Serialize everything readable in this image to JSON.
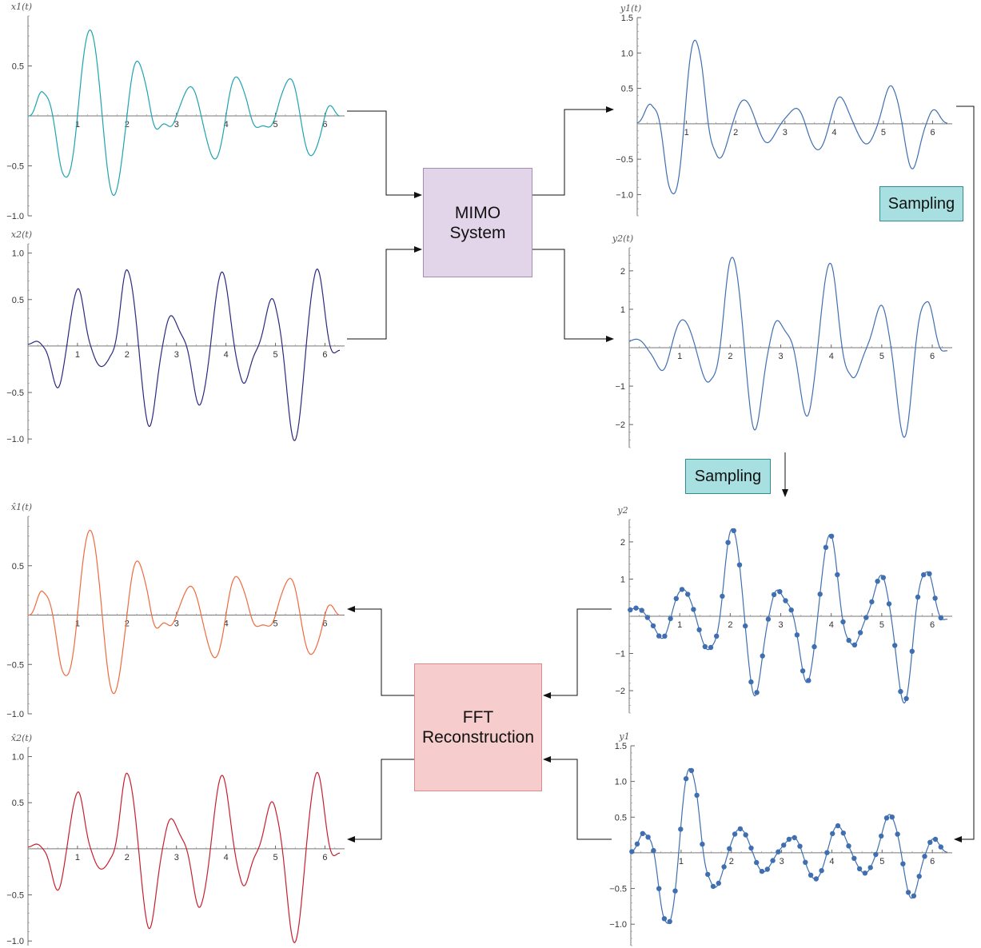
{
  "blocks": {
    "mimo": [
      "MIMO",
      "System"
    ],
    "fft": [
      "FFT",
      "Reconstruction"
    ],
    "sampling_1": "Sampling",
    "sampling_2": "Sampling"
  },
  "colors": {
    "x1": "#1ea3b0",
    "x2": "#2b2880",
    "y": "#3f6fb0",
    "xhat1": "#ef6a3e",
    "xhat2": "#c81e2e",
    "mimo_fill": "#e2d5ea",
    "fft_fill": "#f6cccc",
    "sampling_fill": "#a8dfe0"
  },
  "chart_data": [
    {
      "id": "x1",
      "type": "line",
      "ylabel": "x1(t)",
      "xlim": [
        0,
        6.3
      ],
      "ylim": [
        -1.0,
        1.0
      ],
      "xticks": [
        "1",
        "2",
        "3",
        "4",
        "5",
        "6"
      ],
      "yticks": [
        "0.5",
        "−0.5",
        "−1.0"
      ],
      "ytick_values": [
        0.5,
        -0.5,
        -1.0
      ],
      "signal": {
        "freq": 3.0,
        "phase": 0,
        "env": [
          [
            0,
            0
          ],
          [
            0.3,
            0.25
          ],
          [
            0.7,
            0.6
          ],
          [
            1.1,
            0.85
          ],
          [
            1.5,
            0.88
          ],
          [
            2.0,
            0.7
          ],
          [
            2.4,
            0.45
          ],
          [
            2.75,
            0.08
          ],
          [
            3.0,
            0.22
          ],
          [
            3.5,
            0.35
          ],
          [
            4.0,
            0.5
          ],
          [
            4.4,
            0.32
          ],
          [
            4.75,
            0.1
          ],
          [
            5.1,
            0.3
          ],
          [
            5.5,
            0.48
          ],
          [
            5.9,
            0.35
          ],
          [
            6.3,
            0
          ]
        ]
      }
    },
    {
      "id": "x2",
      "type": "line",
      "ylabel": "x2(t)",
      "xlim": [
        0,
        6.3
      ],
      "ylim": [
        -1.05,
        1.1
      ],
      "xticks": [
        "1",
        "2",
        "3",
        "4",
        "5",
        "6"
      ],
      "yticks": [
        "1.0",
        "0.5",
        "−0.5",
        "−1.0"
      ],
      "ytick_values": [
        1.0,
        0.5,
        -0.5,
        -1.0
      ],
      "signal": {
        "freq": 3.1,
        "phase": 1.2,
        "env": [
          [
            0,
            0.02
          ],
          [
            0.3,
            0.1
          ],
          [
            0.7,
            0.55
          ],
          [
            1.0,
            0.62
          ],
          [
            1.3,
            0.25
          ],
          [
            1.65,
            0.2
          ],
          [
            2.0,
            0.82
          ],
          [
            2.4,
            0.9
          ],
          [
            2.75,
            0.45
          ],
          [
            3.1,
            0.2
          ],
          [
            3.5,
            0.65
          ],
          [
            3.9,
            0.8
          ],
          [
            4.3,
            0.45
          ],
          [
            4.6,
            0.18
          ],
          [
            5.0,
            0.55
          ],
          [
            5.4,
            1.02
          ],
          [
            5.8,
            0.85
          ],
          [
            6.3,
            0.05
          ]
        ]
      }
    },
    {
      "id": "y1",
      "type": "line",
      "ylabel": "y1(t)",
      "xlim": [
        0,
        6.3
      ],
      "ylim": [
        -1.3,
        1.5
      ],
      "xticks": [
        "1",
        "2",
        "3",
        "4",
        "5",
        "6"
      ],
      "yticks": [
        "1.5",
        "1.0",
        "0.5",
        "−0.5",
        "−1.0"
      ],
      "ytick_values": [
        1.5,
        1.0,
        0.5,
        -0.5,
        -1.0
      ],
      "signal": {
        "freq": 3.05,
        "phase": 0.2,
        "env": [
          [
            0,
            0.05
          ],
          [
            0.3,
            0.3
          ],
          [
            0.65,
            0.95
          ],
          [
            1.0,
            1.35
          ],
          [
            1.3,
            1.1
          ],
          [
            1.6,
            0.5
          ],
          [
            2.0,
            0.35
          ],
          [
            2.5,
            0.3
          ],
          [
            3.0,
            0.15
          ],
          [
            3.5,
            0.35
          ],
          [
            4.0,
            0.42
          ],
          [
            4.4,
            0.25
          ],
          [
            4.8,
            0.3
          ],
          [
            5.2,
            0.55
          ],
          [
            5.5,
            0.7
          ],
          [
            5.9,
            0.3
          ],
          [
            6.3,
            0.02
          ]
        ]
      }
    },
    {
      "id": "y2",
      "type": "line",
      "ylabel": "y2(t)",
      "xlim": [
        0,
        6.3
      ],
      "ylim": [
        -2.6,
        2.6
      ],
      "xticks": [
        "1",
        "2",
        "3",
        "4",
        "5",
        "6"
      ],
      "yticks": [
        "2",
        "1",
        "−1",
        "−2"
      ],
      "ytick_values": [
        2,
        1,
        -1,
        -2
      ],
      "signal": {
        "freq": 3.1,
        "phase": 0.9,
        "env": [
          [
            0,
            0.2
          ],
          [
            0.4,
            0.3
          ],
          [
            0.8,
            0.8
          ],
          [
            1.2,
            0.7
          ],
          [
            1.6,
            0.9
          ],
          [
            2.0,
            2.35
          ],
          [
            2.4,
            2.35
          ],
          [
            2.8,
            1.0
          ],
          [
            3.1,
            0.5
          ],
          [
            3.6,
            1.9
          ],
          [
            4.0,
            2.2
          ],
          [
            4.4,
            0.8
          ],
          [
            4.7,
            0.5
          ],
          [
            5.1,
            1.3
          ],
          [
            5.5,
            2.4
          ],
          [
            5.9,
            1.2
          ],
          [
            6.3,
            0.1
          ]
        ]
      }
    },
    {
      "id": "y2s",
      "type": "scatter",
      "ylabel": "y2",
      "xlim": [
        0,
        6.3
      ],
      "ylim": [
        -2.6,
        2.6
      ],
      "xticks": [
        "1",
        "2",
        "3",
        "4",
        "5",
        "6"
      ],
      "yticks": [
        "2",
        "1",
        "−1",
        "−2"
      ],
      "ytick_values": [
        2,
        1,
        -1,
        -2
      ],
      "samples": 55,
      "signal": {
        "freq": 3.1,
        "phase": 0.9,
        "env": [
          [
            0,
            0.2
          ],
          [
            0.4,
            0.3
          ],
          [
            0.8,
            0.8
          ],
          [
            1.2,
            0.7
          ],
          [
            1.6,
            0.9
          ],
          [
            2.0,
            2.35
          ],
          [
            2.4,
            2.35
          ],
          [
            2.8,
            1.0
          ],
          [
            3.1,
            0.5
          ],
          [
            3.6,
            1.9
          ],
          [
            4.0,
            2.2
          ],
          [
            4.4,
            0.8
          ],
          [
            4.7,
            0.5
          ],
          [
            5.1,
            1.3
          ],
          [
            5.5,
            2.4
          ],
          [
            5.9,
            1.2
          ],
          [
            6.3,
            0.1
          ]
        ]
      }
    },
    {
      "id": "y1s",
      "type": "scatter",
      "ylabel": "y1",
      "xlim": [
        0,
        6.3
      ],
      "ylim": [
        -1.3,
        1.5
      ],
      "xticks": [
        "1",
        "2",
        "3",
        "4",
        "5",
        "6"
      ],
      "yticks": [
        "1.5",
        "1.0",
        "0.5",
        "−0.5",
        "−1.0"
      ],
      "ytick_values": [
        1.5,
        1.0,
        0.5,
        -0.5,
        -1.0
      ],
      "samples": 58,
      "signal": {
        "freq": 3.05,
        "phase": 0.2,
        "env": [
          [
            0,
            0.05
          ],
          [
            0.3,
            0.3
          ],
          [
            0.65,
            0.95
          ],
          [
            1.0,
            1.35
          ],
          [
            1.3,
            1.1
          ],
          [
            1.6,
            0.5
          ],
          [
            2.0,
            0.35
          ],
          [
            2.5,
            0.3
          ],
          [
            3.0,
            0.15
          ],
          [
            3.5,
            0.35
          ],
          [
            4.0,
            0.42
          ],
          [
            4.4,
            0.25
          ],
          [
            4.8,
            0.3
          ],
          [
            5.2,
            0.55
          ],
          [
            5.5,
            0.7
          ],
          [
            5.9,
            0.3
          ],
          [
            6.3,
            0.02
          ]
        ]
      }
    },
    {
      "id": "xhat1",
      "type": "line",
      "ylabel": "x̂1(t)",
      "xlim": [
        0,
        6.3
      ],
      "ylim": [
        -1.0,
        1.0
      ],
      "xticks": [
        "1",
        "2",
        "3",
        "4",
        "5",
        "6"
      ],
      "yticks": [
        "0.5",
        "−0.5",
        "−1.0"
      ],
      "ytick_values": [
        0.5,
        -0.5,
        -1.0
      ],
      "signal": {
        "freq": 3.0,
        "phase": 0,
        "env": [
          [
            0,
            0
          ],
          [
            0.3,
            0.25
          ],
          [
            0.7,
            0.6
          ],
          [
            1.1,
            0.85
          ],
          [
            1.5,
            0.88
          ],
          [
            2.0,
            0.7
          ],
          [
            2.4,
            0.45
          ],
          [
            2.75,
            0.08
          ],
          [
            3.0,
            0.22
          ],
          [
            3.5,
            0.35
          ],
          [
            4.0,
            0.5
          ],
          [
            4.4,
            0.32
          ],
          [
            4.75,
            0.1
          ],
          [
            5.1,
            0.3
          ],
          [
            5.5,
            0.48
          ],
          [
            5.9,
            0.35
          ],
          [
            6.3,
            0
          ]
        ]
      }
    },
    {
      "id": "xhat2",
      "type": "line",
      "ylabel": "x̂2(t)",
      "xlim": [
        0,
        6.3
      ],
      "ylim": [
        -1.05,
        1.1
      ],
      "xticks": [
        "1",
        "2",
        "3",
        "4",
        "5",
        "6"
      ],
      "yticks": [
        "1.0",
        "0.5",
        "−0.5",
        "−1.0"
      ],
      "ytick_values": [
        1.0,
        0.5,
        -0.5,
        -1.0
      ],
      "signal": {
        "freq": 3.1,
        "phase": 1.2,
        "env": [
          [
            0,
            0.02
          ],
          [
            0.3,
            0.1
          ],
          [
            0.7,
            0.55
          ],
          [
            1.0,
            0.62
          ],
          [
            1.3,
            0.25
          ],
          [
            1.65,
            0.2
          ],
          [
            2.0,
            0.82
          ],
          [
            2.4,
            0.9
          ],
          [
            2.75,
            0.45
          ],
          [
            3.1,
            0.2
          ],
          [
            3.5,
            0.65
          ],
          [
            3.9,
            0.8
          ],
          [
            4.3,
            0.45
          ],
          [
            4.6,
            0.18
          ],
          [
            5.0,
            0.55
          ],
          [
            5.4,
            1.02
          ],
          [
            5.8,
            0.85
          ],
          [
            6.3,
            0.05
          ]
        ]
      }
    }
  ]
}
